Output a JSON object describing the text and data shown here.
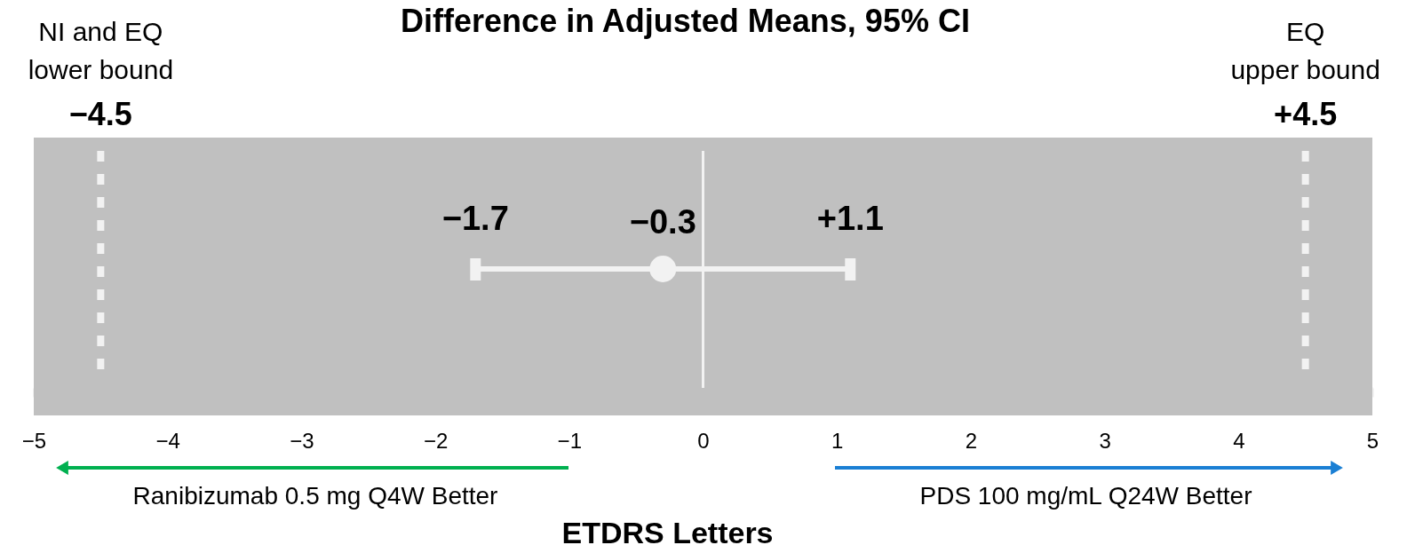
{
  "chart_data": {
    "type": "scatter",
    "title": "Difference in Adjusted Means, 95% CI",
    "xlabel": "ETDRS Letters",
    "orientation": "horizontal",
    "categories": [
      null
    ],
    "series": [
      {
        "color": "#f2f2f2",
        "values": [
          -0.3
        ],
        "errors": [
          1.4
        ],
        "value_labels": [
          "−0.3"
        ]
      }
    ],
    "xlim": [
      -5,
      5
    ],
    "xticks": [
      {
        "value": -5,
        "label": "−5"
      },
      {
        "value": -4.5,
        "label": null
      },
      {
        "value": -4,
        "label": "−4"
      },
      {
        "value": -3,
        "label": "−3"
      },
      {
        "value": -2,
        "label": "−2"
      },
      {
        "value": -1,
        "label": "−1"
      },
      0,
      1,
      2,
      3,
      4,
      {
        "value": 4.5,
        "label": null
      },
      5
    ],
    "ref_lines": [
      {
        "axis": "x",
        "value": -4.5,
        "label": "NI and EQ\nlower bound\n−4.5",
        "color": "#f2f2f2",
        "line_style": "dotted"
      },
      {
        "axis": "x",
        "value": 4.5,
        "label": "EQ\nupper bound\n+4.5",
        "color": "#f2f2f2",
        "line_style": "dotted"
      },
      {
        "axis": "x",
        "value": 0,
        "color": "#f2f2f2",
        "line_style": "solid"
      }
    ],
    "annotations": [
      "−1.7",
      "+1.1",
      "Ranibizumab 0.5 mg Q4W Better",
      "PDS 100 mg/mL Q24W Better"
    ],
    "grid": false,
    "marker": "circle"
  }
}
